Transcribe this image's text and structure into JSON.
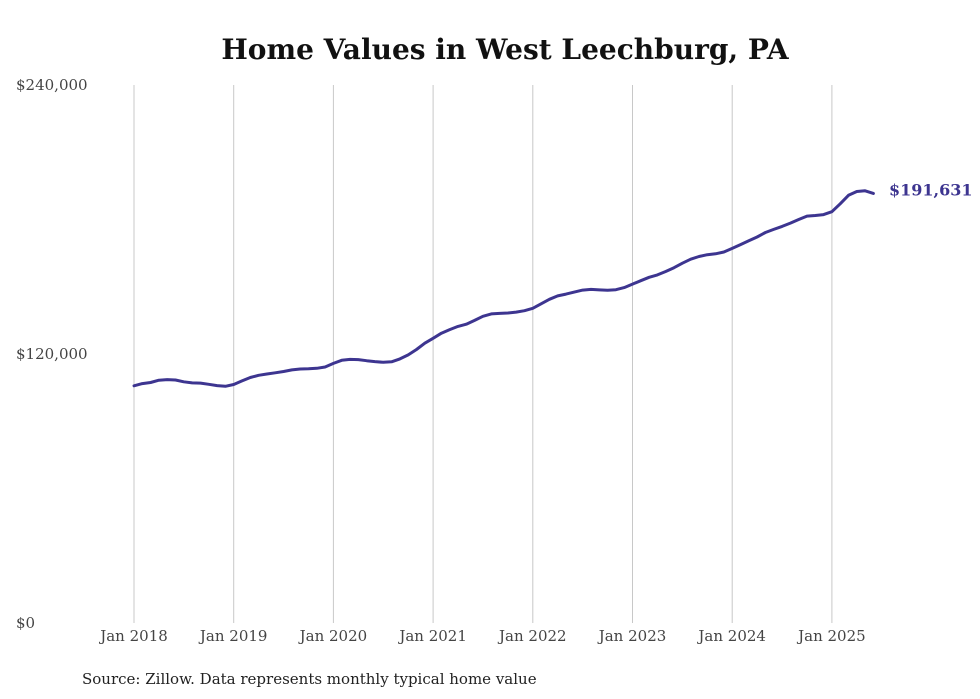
{
  "chart_data": {
    "type": "line",
    "title": "Home Values in West Leechburg, PA",
    "source_note": "Source: Zillow. Data represents monthly typical home value",
    "xlabel": "",
    "ylabel": "",
    "ylim": [
      0,
      240000
    ],
    "y_ticks": [
      {
        "value": 0,
        "label": "$0"
      },
      {
        "value": 120000,
        "label": "$120,000"
      },
      {
        "value": 240000,
        "label": "$240,000"
      }
    ],
    "x_ticks": [
      {
        "value": "2018-01",
        "label": "Jan 2018"
      },
      {
        "value": "2019-01",
        "label": "Jan 2019"
      },
      {
        "value": "2020-01",
        "label": "Jan 2020"
      },
      {
        "value": "2021-01",
        "label": "Jan 2021"
      },
      {
        "value": "2022-01",
        "label": "Jan 2022"
      },
      {
        "value": "2023-01",
        "label": "Jan 2023"
      },
      {
        "value": "2024-01",
        "label": "Jan 2024"
      },
      {
        "value": "2025-01",
        "label": "Jan 2025"
      }
    ],
    "grid": {
      "vertical": true,
      "horizontal": false
    },
    "series_color": "#3d3590",
    "end_label": "$191,631",
    "series": [
      {
        "points": [
          [
            "2018-01",
            105800
          ],
          [
            "2018-02",
            106800
          ],
          [
            "2018-03",
            107300
          ],
          [
            "2018-04",
            108300
          ],
          [
            "2018-05",
            108600
          ],
          [
            "2018-06",
            108400
          ],
          [
            "2018-07",
            107600
          ],
          [
            "2018-08",
            107100
          ],
          [
            "2018-09",
            107000
          ],
          [
            "2018-10",
            106500
          ],
          [
            "2018-11",
            105900
          ],
          [
            "2018-12",
            105600
          ],
          [
            "2019-01",
            106400
          ],
          [
            "2019-02",
            108000
          ],
          [
            "2019-03",
            109500
          ],
          [
            "2019-04",
            110500
          ],
          [
            "2019-05",
            111100
          ],
          [
            "2019-06",
            111600
          ],
          [
            "2019-07",
            112200
          ],
          [
            "2019-08",
            112900
          ],
          [
            "2019-09",
            113300
          ],
          [
            "2019-10",
            113400
          ],
          [
            "2019-11",
            113600
          ],
          [
            "2019-12",
            114200
          ],
          [
            "2020-01",
            115800
          ],
          [
            "2020-02",
            117200
          ],
          [
            "2020-03",
            117600
          ],
          [
            "2020-04",
            117500
          ],
          [
            "2020-05",
            117000
          ],
          [
            "2020-06",
            116600
          ],
          [
            "2020-07",
            116300
          ],
          [
            "2020-08",
            116500
          ],
          [
            "2020-09",
            117800
          ],
          [
            "2020-10",
            119600
          ],
          [
            "2020-11",
            122000
          ],
          [
            "2020-12",
            124800
          ],
          [
            "2021-01",
            127000
          ],
          [
            "2021-02",
            129300
          ],
          [
            "2021-03",
            130900
          ],
          [
            "2021-04",
            132300
          ],
          [
            "2021-05",
            133300
          ],
          [
            "2021-06",
            135000
          ],
          [
            "2021-07",
            136800
          ],
          [
            "2021-08",
            137900
          ],
          [
            "2021-09",
            138100
          ],
          [
            "2021-10",
            138300
          ],
          [
            "2021-11",
            138700
          ],
          [
            "2021-12",
            139300
          ],
          [
            "2022-01",
            140400
          ],
          [
            "2022-02",
            142400
          ],
          [
            "2022-03",
            144400
          ],
          [
            "2022-04",
            145900
          ],
          [
            "2022-05",
            146700
          ],
          [
            "2022-06",
            147600
          ],
          [
            "2022-07",
            148500
          ],
          [
            "2022-08",
            148800
          ],
          [
            "2022-09",
            148600
          ],
          [
            "2022-10",
            148400
          ],
          [
            "2022-11",
            148700
          ],
          [
            "2022-12",
            149600
          ],
          [
            "2023-01",
            151200
          ],
          [
            "2023-02",
            152700
          ],
          [
            "2023-03",
            154200
          ],
          [
            "2023-04",
            155300
          ],
          [
            "2023-05",
            156800
          ],
          [
            "2023-06",
            158500
          ],
          [
            "2023-07",
            160500
          ],
          [
            "2023-08",
            162300
          ],
          [
            "2023-09",
            163500
          ],
          [
            "2023-10",
            164300
          ],
          [
            "2023-11",
            164700
          ],
          [
            "2023-12",
            165500
          ],
          [
            "2024-01",
            167100
          ],
          [
            "2024-02",
            168800
          ],
          [
            "2024-03",
            170500
          ],
          [
            "2024-04",
            172200
          ],
          [
            "2024-05",
            174200
          ],
          [
            "2024-06",
            175600
          ],
          [
            "2024-07",
            176900
          ],
          [
            "2024-08",
            178400
          ],
          [
            "2024-09",
            180000
          ],
          [
            "2024-10",
            181500
          ],
          [
            "2024-11",
            181800
          ],
          [
            "2024-12",
            182200
          ],
          [
            "2025-01",
            183500
          ],
          [
            "2025-02",
            187000
          ],
          [
            "2025-03",
            190800
          ],
          [
            "2025-04",
            192500
          ],
          [
            "2025-05",
            192800
          ],
          [
            "2025-06",
            191631
          ]
        ]
      }
    ]
  }
}
